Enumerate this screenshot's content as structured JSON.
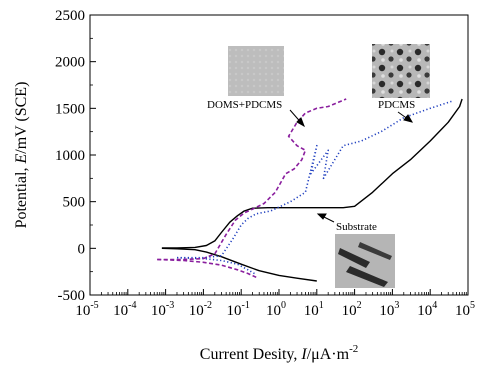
{
  "chart_data": {
    "type": "line",
    "xscale": "log",
    "xlim": [
      1e-05,
      100000.0
    ],
    "ylim": [
      -500,
      2500
    ],
    "grid": false,
    "x_ticks": [
      {
        "base": "10",
        "exp": "-5"
      },
      {
        "base": "10",
        "exp": "-4"
      },
      {
        "base": "10",
        "exp": "-3"
      },
      {
        "base": "10",
        "exp": "-2"
      },
      {
        "base": "10",
        "exp": "-1"
      },
      {
        "base": "10",
        "exp": "0"
      },
      {
        "base": "10",
        "exp": "1"
      },
      {
        "base": "10",
        "exp": "2"
      },
      {
        "base": "10",
        "exp": "3"
      },
      {
        "base": "10",
        "exp": "4"
      },
      {
        "base": "10",
        "exp": "5"
      }
    ],
    "y_ticks": [
      "-500",
      "0",
      "500",
      "1000",
      "1500",
      "2000",
      "2500"
    ],
    "xlabel": {
      "pre": "Current Desity, ",
      "var": "I",
      "unit": "/μA·m",
      "exp": "-2"
    },
    "ylabel": {
      "pre": "Potential, ",
      "var": "E",
      "unit": "/mV (SCE)"
    },
    "series": [
      {
        "name": "Substrate",
        "color": "#000000",
        "style": "solid",
        "x": [
          0.0008,
          0.002,
          0.006,
          0.012,
          0.02,
          0.03,
          0.05,
          0.08,
          0.12,
          0.2,
          0.5,
          2,
          10,
          50,
          100,
          300,
          1000,
          3000,
          10000,
          30000,
          60000,
          70000
        ],
        "y": [
          5,
          5,
          10,
          30,
          80,
          170,
          280,
          350,
          400,
          430,
          435,
          435,
          435,
          435,
          450,
          600,
          800,
          950,
          1150,
          1350,
          1520,
          1600
        ],
        "branch2_x": [
          0.0008,
          0.002,
          0.006,
          0.012,
          0.03,
          0.1,
          0.3,
          1,
          3,
          10
        ],
        "branch2_y": [
          0,
          -5,
          -15,
          -40,
          -90,
          -170,
          -240,
          -290,
          -320,
          -350
        ]
      },
      {
        "name": "PDCMS",
        "color": "#1f3fbf",
        "style": "dotted",
        "x": [
          0.002,
          0.01,
          0.03,
          0.06,
          0.1,
          0.15,
          0.25,
          0.6,
          2,
          5,
          10,
          7,
          20,
          15,
          50,
          150,
          500,
          2000,
          10000,
          40000
        ],
        "y": [
          -100,
          -100,
          -80,
          100,
          250,
          320,
          370,
          400,
          500,
          600,
          1100,
          800,
          1050,
          750,
          1100,
          1150,
          1250,
          1400,
          1500,
          1580
        ],
        "branch2_x": [
          0.002,
          0.01,
          0.03,
          0.08,
          0.15,
          0.25
        ],
        "branch2_y": [
          -100,
          -110,
          -130,
          -170,
          -230,
          -280
        ]
      },
      {
        "name": "DOMS+PDCMS",
        "color": "#8a1f9e",
        "style": "dashed",
        "x": [
          0.0006,
          0.003,
          0.01,
          0.02,
          0.04,
          0.07,
          0.12,
          0.2,
          0.4,
          0.8,
          1.5,
          2.5,
          4,
          5,
          3,
          1.8,
          3,
          5,
          10,
          20,
          35,
          60
        ],
        "y": [
          -120,
          -120,
          -110,
          -60,
          150,
          300,
          380,
          420,
          480,
          600,
          800,
          850,
          950,
          1050,
          1100,
          1200,
          1350,
          1450,
          1500,
          1520,
          1560,
          1600
        ],
        "branch2_x": [
          0.0006,
          0.003,
          0.01,
          0.03,
          0.08,
          0.15,
          0.25
        ],
        "branch2_y": [
          -120,
          -130,
          -150,
          -180,
          -230,
          -270,
          -310
        ]
      }
    ],
    "annotations": [
      {
        "text": "DOMS+PDCMS",
        "position": "upper-left-center"
      },
      {
        "text": "PDCMS",
        "position": "upper-right"
      },
      {
        "text": "Substrate",
        "position": "middle-right"
      }
    ]
  }
}
